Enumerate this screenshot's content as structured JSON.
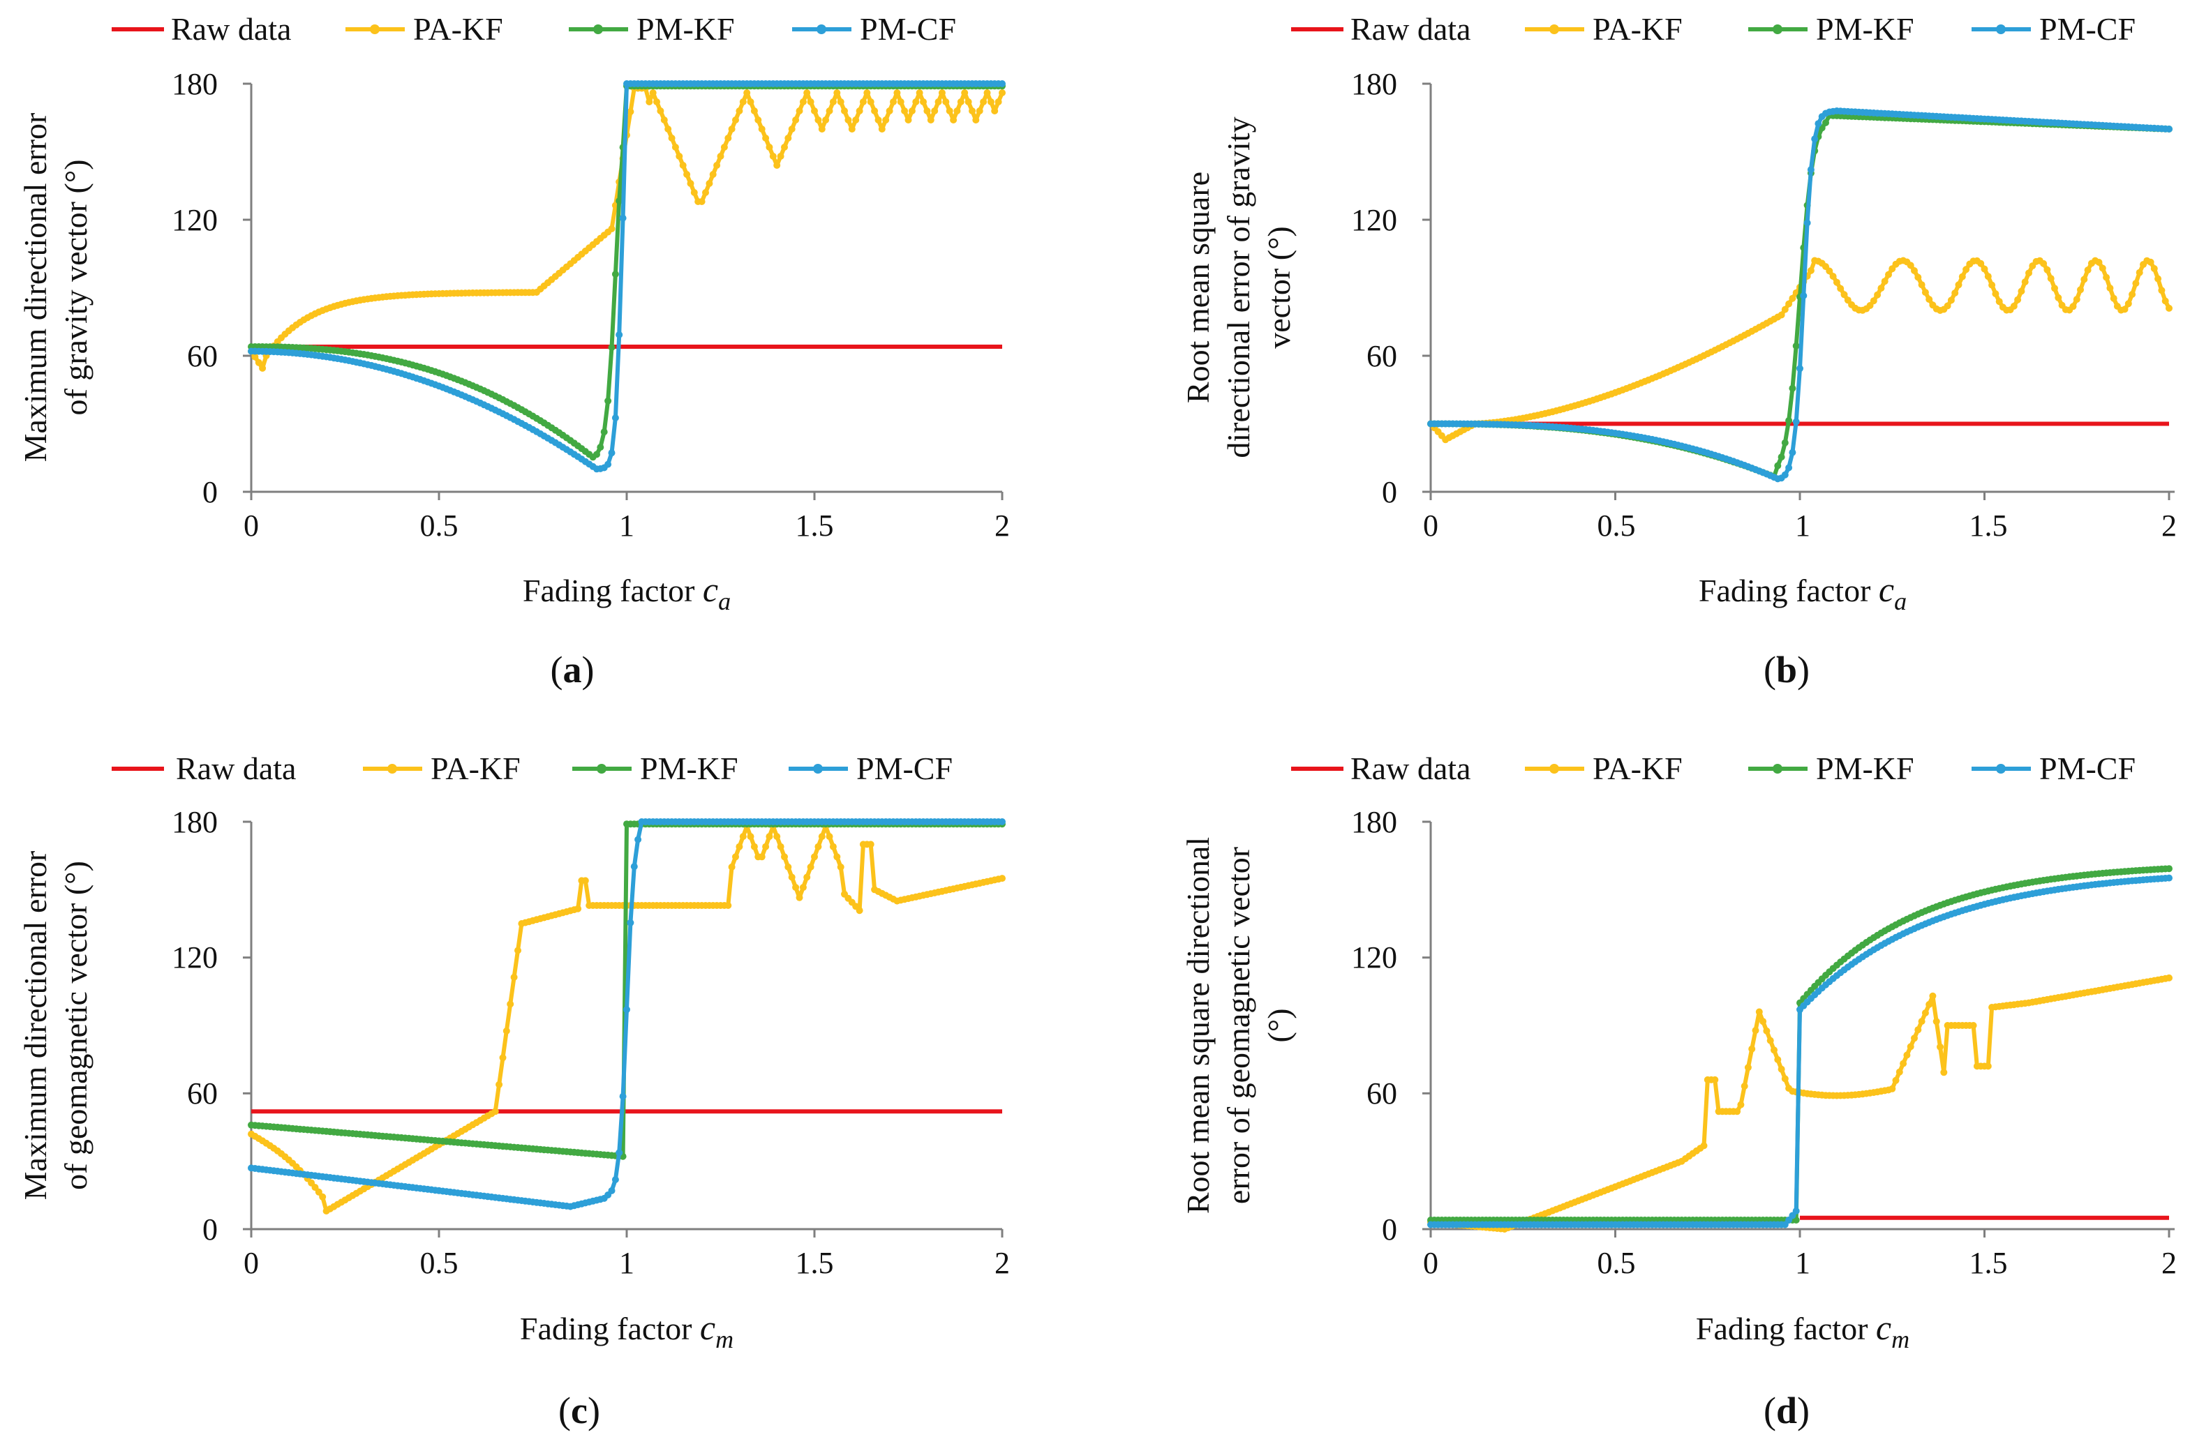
{
  "chart_data": [
    {
      "type": "line",
      "panel_label": "a",
      "ylabel_lines": [
        "Maximum directional error",
        "of gravity vector (°)"
      ],
      "xlabel_text": "Fading factor ",
      "xlabel_sym": "c",
      "xlabel_sub": "a",
      "xlim": [
        0,
        2
      ],
      "ylim": [
        0,
        180
      ],
      "x_ticks": [
        {
          "v": 0,
          "label": "0"
        },
        {
          "v": 0.5,
          "label": "0.5"
        },
        {
          "v": 1,
          "label": "1"
        },
        {
          "v": 1.5,
          "label": "1.5"
        },
        {
          "v": 2,
          "label": "2"
        }
      ],
      "y_ticks": [
        {
          "v": 0,
          "label": "0"
        },
        {
          "v": 60,
          "label": "60"
        },
        {
          "v": 120,
          "label": "120"
        },
        {
          "v": 180,
          "label": "180"
        }
      ],
      "legend": [
        "Raw data",
        "PA-KF",
        "PM-KF",
        "PM-CF"
      ],
      "series": [
        {
          "name": "Raw data",
          "kind": "raw",
          "y0": 64,
          "x0": 0,
          "x1": 2
        },
        {
          "name": "PA-KF",
          "kind": "pakf",
          "mode": "a_max"
        },
        {
          "name": "PM-KF",
          "kind": "pmkf",
          "mode": "a_max"
        },
        {
          "name": "PM-CF",
          "kind": "pmcf",
          "mode": "a_max"
        }
      ]
    },
    {
      "type": "line",
      "panel_label": "b",
      "ylabel_lines": [
        "Root mean square",
        "directional error of gravity",
        "vector (°)"
      ],
      "xlabel_text": "Fading factor ",
      "xlabel_sym": "c",
      "xlabel_sub": "a",
      "xlim": [
        0,
        2
      ],
      "ylim": [
        0,
        180
      ],
      "x_ticks": [
        {
          "v": 0,
          "label": "0"
        },
        {
          "v": 0.5,
          "label": "0.5"
        },
        {
          "v": 1,
          "label": "1"
        },
        {
          "v": 1.5,
          "label": "1.5"
        },
        {
          "v": 2,
          "label": "2"
        }
      ],
      "y_ticks": [
        {
          "v": 0,
          "label": "0"
        },
        {
          "v": 60,
          "label": "60"
        },
        {
          "v": 120,
          "label": "120"
        },
        {
          "v": 180,
          "label": "180"
        }
      ],
      "legend": [
        "Raw data",
        "PA-KF",
        "PM-KF",
        "PM-CF"
      ],
      "series": [
        {
          "name": "Raw data",
          "kind": "raw",
          "y0": 30,
          "x0": 0,
          "x1": 2
        },
        {
          "name": "PA-KF",
          "kind": "pakf",
          "mode": "a_rms"
        },
        {
          "name": "PM-KF",
          "kind": "pmkf",
          "mode": "a_rms"
        },
        {
          "name": "PM-CF",
          "kind": "pmcf",
          "mode": "a_rms"
        }
      ]
    },
    {
      "type": "line",
      "panel_label": "c",
      "ylabel_lines": [
        "Maximum directional error",
        "of geomagnetic vector (°)"
      ],
      "xlabel_text": "Fading factor ",
      "xlabel_sym": "c",
      "xlabel_sub": "m",
      "xlim": [
        0,
        2
      ],
      "ylim": [
        0,
        180
      ],
      "x_ticks": [
        {
          "v": 0,
          "label": "0"
        },
        {
          "v": 0.5,
          "label": "0.5"
        },
        {
          "v": 1,
          "label": "1"
        },
        {
          "v": 1.5,
          "label": "1.5"
        },
        {
          "v": 2,
          "label": "2"
        }
      ],
      "y_ticks": [
        {
          "v": 0,
          "label": "0"
        },
        {
          "v": 60,
          "label": "60"
        },
        {
          "v": 120,
          "label": "120"
        },
        {
          "v": 180,
          "label": "180"
        }
      ],
      "legend": [
        "Raw data",
        "PA-KF",
        "PM-KF",
        "PM-CF"
      ],
      "series": [
        {
          "name": "Raw data",
          "kind": "raw",
          "y0": 52,
          "x0": 0,
          "x1": 2
        },
        {
          "name": "PA-KF",
          "kind": "pakf",
          "mode": "m_max"
        },
        {
          "name": "PM-KF",
          "kind": "pmkf",
          "mode": "m_max"
        },
        {
          "name": "PM-CF",
          "kind": "pmcf",
          "mode": "m_max"
        }
      ]
    },
    {
      "type": "line",
      "panel_label": "d",
      "ylabel_lines": [
        "Root mean square directional",
        "error of geomagnetic vector",
        "(°)"
      ],
      "xlabel_text": "Fading factor ",
      "xlabel_sym": "c",
      "xlabel_sub": "m",
      "xlim": [
        0,
        2
      ],
      "ylim": [
        0,
        180
      ],
      "x_ticks": [
        {
          "v": 0,
          "label": "0"
        },
        {
          "v": 0.5,
          "label": "0.5"
        },
        {
          "v": 1,
          "label": "1"
        },
        {
          "v": 1.5,
          "label": "1.5"
        },
        {
          "v": 2,
          "label": "2"
        }
      ],
      "y_ticks": [
        {
          "v": 0,
          "label": "0"
        },
        {
          "v": 60,
          "label": "60"
        },
        {
          "v": 120,
          "label": "120"
        },
        {
          "v": 180,
          "label": "180"
        }
      ],
      "legend": [
        "Raw data",
        "PA-KF",
        "PM-KF",
        "PM-CF"
      ],
      "series": [
        {
          "name": "Raw data",
          "kind": "raw",
          "y0": 5,
          "x0": 1,
          "x1": 2
        },
        {
          "name": "PA-KF",
          "kind": "pakf",
          "mode": "m_rms"
        },
        {
          "name": "PM-KF",
          "kind": "pmkf",
          "mode": "m_rms"
        },
        {
          "name": "PM-CF",
          "kind": "pmcf",
          "mode": "m_rms"
        }
      ]
    }
  ],
  "colors": {
    "raw": "#e8141b",
    "pakf": "#fcc21b",
    "pmkf": "#42a942",
    "pmcf": "#2d9fd8",
    "axis": "#7f7f7f"
  },
  "series_names": {
    "raw": "Raw data",
    "pakf": "PA-KF",
    "pmkf": "PM-KF",
    "pmcf": "PM-CF"
  }
}
